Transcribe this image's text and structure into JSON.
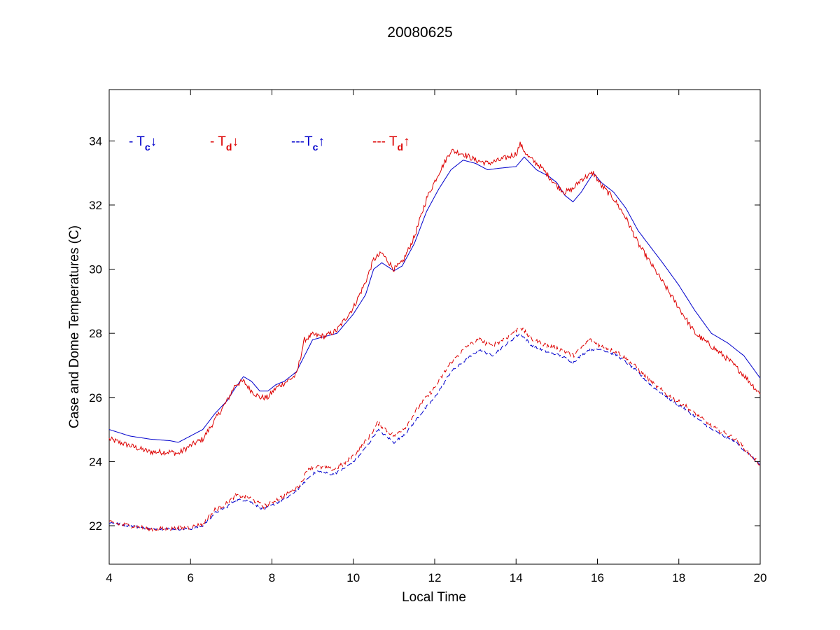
{
  "chart_data": {
    "type": "line",
    "title": "20080625",
    "xlabel": "Local Time",
    "ylabel": "Case and Dome Temperatures (C)",
    "xlim": [
      4,
      20
    ],
    "ylim": [
      20.8,
      35.6
    ],
    "xticks": [
      4,
      6,
      8,
      10,
      12,
      14,
      16,
      18,
      20
    ],
    "yticks": [
      22,
      24,
      26,
      28,
      30,
      32,
      34
    ],
    "grid": false,
    "legend_position": "top-left",
    "legend": [
      {
        "prefix": "- ",
        "symbol": "T",
        "sub": "c",
        "arrow": "↓",
        "color": "#0000CC"
      },
      {
        "prefix": "- ",
        "symbol": "T",
        "sub": "d",
        "arrow": "↓",
        "color": "#DD0000"
      },
      {
        "prefix": "---",
        "symbol": "T",
        "sub": "c",
        "arrow": "↑",
        "color": "#0000CC"
      },
      {
        "prefix": "--- ",
        "symbol": "T",
        "sub": "d",
        "arrow": "↑",
        "color": "#DD0000"
      }
    ],
    "series": [
      {
        "color": "#0000CC",
        "dashed": false,
        "noise": 0.0,
        "x": [
          4,
          4.5,
          5,
          5.5,
          5.7,
          6,
          6.3,
          6.6,
          6.9,
          7.1,
          7.3,
          7.5,
          7.7,
          7.9,
          8.1,
          8.3,
          8.6,
          8.8,
          9.0,
          9.3,
          9.6,
          10.0,
          10.3,
          10.5,
          10.7,
          11.0,
          11.2,
          11.5,
          11.8,
          12.1,
          12.4,
          12.7,
          13.0,
          13.3,
          13.6,
          14.0,
          14.2,
          14.5,
          14.8,
          15.0,
          15.2,
          15.4,
          15.6,
          15.9,
          16.1,
          16.4,
          16.7,
          17.0,
          17.3,
          17.6,
          18.0,
          18.4,
          18.8,
          19.2,
          19.6,
          20.0
        ],
        "y": [
          25.0,
          24.8,
          24.7,
          24.65,
          24.6,
          24.8,
          25.0,
          25.5,
          25.9,
          26.3,
          26.65,
          26.5,
          26.2,
          26.2,
          26.4,
          26.5,
          26.8,
          27.3,
          27.8,
          27.9,
          28.0,
          28.6,
          29.2,
          30.0,
          30.2,
          29.95,
          30.1,
          30.8,
          31.8,
          32.5,
          33.1,
          33.4,
          33.3,
          33.1,
          33.15,
          33.2,
          33.5,
          33.1,
          32.9,
          32.7,
          32.3,
          32.1,
          32.4,
          33.0,
          32.7,
          32.4,
          31.9,
          31.2,
          30.7,
          30.2,
          29.5,
          28.7,
          28.0,
          27.7,
          27.3,
          26.6
        ]
      },
      {
        "color": "#DD0000",
        "dashed": false,
        "noise": 0.09,
        "x": [
          4,
          4.5,
          5,
          5.5,
          5.7,
          6,
          6.3,
          6.6,
          6.9,
          7.1,
          7.3,
          7.5,
          7.7,
          7.9,
          8.1,
          8.3,
          8.6,
          8.8,
          9.0,
          9.3,
          9.6,
          10.0,
          10.3,
          10.5,
          10.7,
          11.0,
          11.2,
          11.5,
          11.8,
          12.1,
          12.4,
          12.7,
          13.0,
          13.3,
          13.6,
          14.0,
          14.1,
          14.3,
          14.6,
          14.8,
          15.0,
          15.2,
          15.4,
          15.6,
          15.9,
          16.1,
          16.4,
          16.7,
          17.0,
          17.3,
          17.6,
          18.0,
          18.4,
          18.8,
          19.2,
          19.6,
          20.0
        ],
        "y": [
          24.7,
          24.5,
          24.3,
          24.3,
          24.25,
          24.5,
          24.7,
          25.3,
          25.9,
          26.4,
          26.5,
          26.2,
          26.0,
          26.0,
          26.3,
          26.45,
          26.7,
          27.8,
          27.95,
          27.9,
          28.1,
          28.8,
          29.6,
          30.3,
          30.5,
          30.0,
          30.2,
          31.0,
          32.2,
          33.0,
          33.7,
          33.6,
          33.4,
          33.3,
          33.4,
          33.6,
          33.9,
          33.5,
          33.2,
          32.9,
          32.6,
          32.4,
          32.5,
          32.8,
          33.0,
          32.6,
          32.2,
          31.6,
          30.8,
          30.2,
          29.6,
          28.8,
          28.0,
          27.6,
          27.2,
          26.7,
          26.1
        ]
      },
      {
        "color": "#0000CC",
        "dashed": true,
        "noise": 0.04,
        "x": [
          4,
          4.5,
          5,
          5.5,
          6,
          6.3,
          6.6,
          6.9,
          7.1,
          7.4,
          7.8,
          8.1,
          8.4,
          8.7,
          8.9,
          9.1,
          9.5,
          9.8,
          10.1,
          10.4,
          10.6,
          10.8,
          11.0,
          11.3,
          11.6,
          12.0,
          12.4,
          12.8,
          13.1,
          13.4,
          13.8,
          14.1,
          14.4,
          14.8,
          15.1,
          15.4,
          15.8,
          16.1,
          16.5,
          16.9,
          17.3,
          17.7,
          18.2,
          18.8,
          19.4,
          20.0
        ],
        "y": [
          22.1,
          22.0,
          21.9,
          21.9,
          21.9,
          22.0,
          22.4,
          22.6,
          22.8,
          22.8,
          22.5,
          22.7,
          22.9,
          23.2,
          23.5,
          23.7,
          23.6,
          23.8,
          24.1,
          24.6,
          25.0,
          24.8,
          24.6,
          24.9,
          25.4,
          26.0,
          26.8,
          27.2,
          27.5,
          27.3,
          27.7,
          28.0,
          27.6,
          27.4,
          27.3,
          27.1,
          27.5,
          27.5,
          27.3,
          26.9,
          26.4,
          26.0,
          25.6,
          25.0,
          24.6,
          23.9
        ]
      },
      {
        "color": "#DD0000",
        "dashed": true,
        "noise": 0.07,
        "x": [
          4,
          4.5,
          5,
          5.5,
          6,
          6.3,
          6.6,
          6.9,
          7.1,
          7.4,
          7.8,
          8.1,
          8.4,
          8.7,
          8.9,
          9.1,
          9.5,
          9.8,
          10.1,
          10.4,
          10.6,
          10.8,
          11.0,
          11.3,
          11.6,
          12.0,
          12.4,
          12.8,
          13.1,
          13.4,
          13.8,
          14.1,
          14.4,
          14.8,
          15.1,
          15.4,
          15.8,
          16.1,
          16.5,
          16.9,
          17.3,
          17.7,
          18.2,
          18.8,
          19.4,
          20.0
        ],
        "y": [
          22.1,
          22.0,
          21.9,
          21.9,
          21.95,
          22.05,
          22.5,
          22.7,
          22.95,
          22.9,
          22.6,
          22.8,
          23.0,
          23.3,
          23.8,
          23.85,
          23.75,
          23.95,
          24.3,
          24.8,
          25.2,
          25.0,
          24.8,
          25.1,
          25.7,
          26.3,
          27.1,
          27.6,
          27.8,
          27.6,
          27.9,
          28.2,
          27.8,
          27.6,
          27.5,
          27.3,
          27.8,
          27.6,
          27.4,
          27.0,
          26.5,
          26.1,
          25.7,
          25.1,
          24.7,
          23.9
        ]
      }
    ]
  }
}
